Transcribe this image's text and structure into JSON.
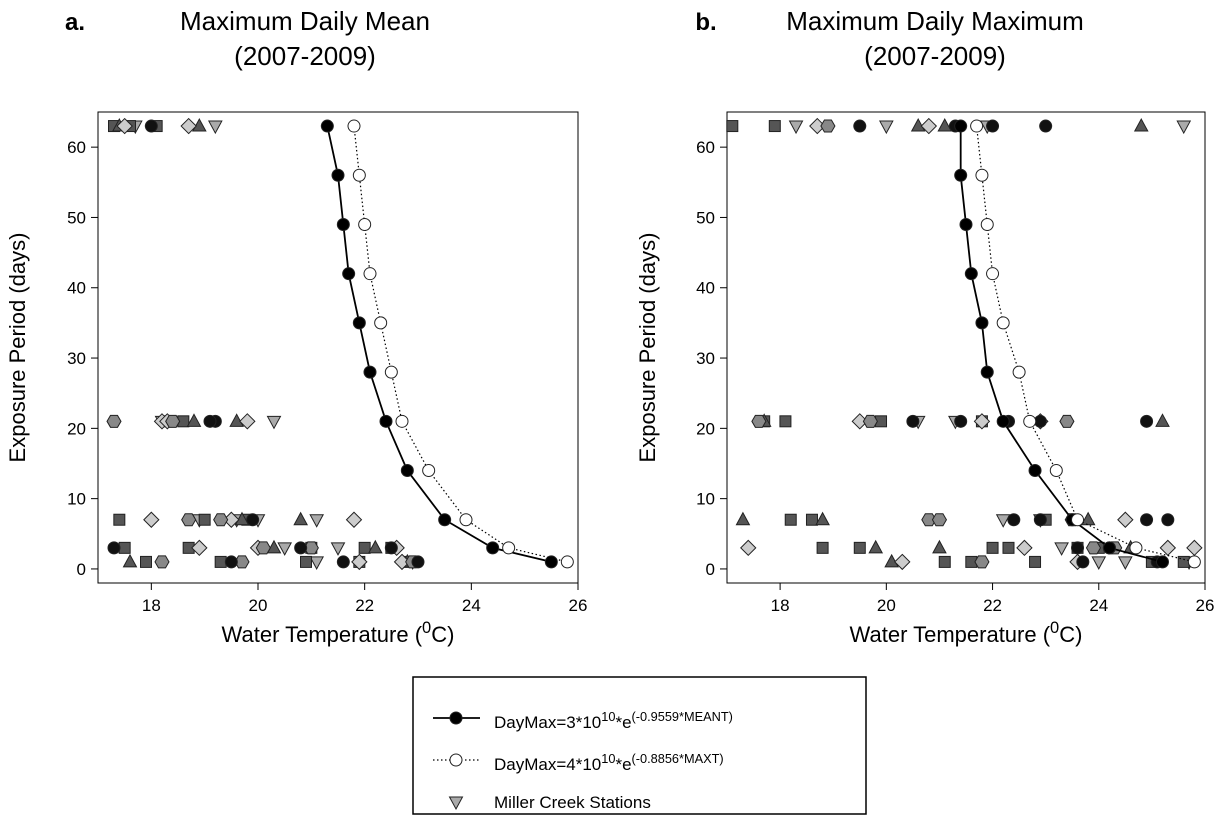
{
  "chart_data": [
    {
      "type": "scatter",
      "panel_label": "a.",
      "title": [
        "Maximum Daily Mean",
        "(2007-2009)"
      ],
      "x_label": [
        "Water Temperature (",
        "0",
        "C)"
      ],
      "y_label": "Exposure Period (days)",
      "xlim": [
        17,
        26
      ],
      "ylim": [
        -2,
        65
      ],
      "xticks": [
        18,
        20,
        22,
        24,
        26
      ],
      "yticks": [
        0,
        10,
        20,
        30,
        40,
        50,
        60
      ],
      "series": [
        {
          "name": [
            "DayMax=3*10",
            "10",
            "*e",
            "(-0.9559*MEANT)"
          ],
          "marker": "circle",
          "color": "#000000",
          "line": "solid",
          "x": [
            21.3,
            21.5,
            21.6,
            21.7,
            21.9,
            22.1,
            22.4,
            22.8,
            23.5,
            24.4,
            25.5
          ],
          "values": [
            63,
            56,
            49,
            42,
            35,
            28,
            21,
            14,
            7,
            3,
            1
          ]
        },
        {
          "name": [
            "DayMax=4*10",
            "10",
            "*e",
            "(-0.8856*MAXT)"
          ],
          "marker": "circle",
          "color": "#ffffff",
          "line": "dotted",
          "x": [
            21.8,
            21.9,
            22.0,
            22.1,
            22.3,
            22.5,
            22.7,
            23.2,
            23.9,
            24.7,
            25.8
          ],
          "values": [
            63,
            56,
            49,
            42,
            35,
            28,
            21,
            14,
            7,
            3,
            1
          ]
        },
        {
          "name": "Miller Creek Stations",
          "marker": "triangle-down",
          "color": "#aaaaaa",
          "x": [
            17.7,
            19.2,
            18.2,
            20.3,
            18.9,
            20.0,
            21.1,
            21.1,
            20.5,
            21.5,
            22.9,
            19.6
          ],
          "values": [
            63,
            63,
            21,
            21,
            7,
            7,
            7,
            1,
            3,
            3,
            1,
            7
          ]
        },
        {
          "marker": "square",
          "color": "#555555",
          "x": [
            17.3,
            17.6,
            18.1,
            17.4,
            17.5,
            17.9,
            18.7,
            19.3,
            18.3,
            18.6,
            20.9,
            21.0,
            21.9,
            22.0,
            22.5,
            22.8,
            19.0,
            19.8
          ],
          "values": [
            63,
            63,
            63,
            7,
            3,
            1,
            3,
            1,
            21,
            21,
            1,
            3,
            1,
            3,
            3,
            1,
            7,
            7
          ]
        },
        {
          "marker": "triangle-up",
          "color": "#555555",
          "x": [
            17.4,
            18.9,
            17.6,
            19.6,
            19.7,
            20.8,
            22.2,
            22.8,
            18.8,
            20.3
          ],
          "values": [
            63,
            63,
            1,
            21,
            7,
            7,
            3,
            1,
            21,
            3
          ]
        },
        {
          "marker": "diamond",
          "color": "#cccccc",
          "x": [
            17.5,
            18.7,
            18.0,
            18.2,
            18.9,
            19.5,
            19.8,
            20.0,
            21.8,
            21.9,
            22.6,
            22.7,
            18.3
          ],
          "values": [
            63,
            63,
            7,
            21,
            3,
            7,
            21,
            3,
            7,
            1,
            3,
            1,
            21
          ]
        },
        {
          "marker": "hexagon",
          "color": "#888888",
          "x": [
            17.3,
            18.7,
            18.4,
            18.2,
            19.3,
            19.7,
            20.1,
            21.0,
            22.9
          ],
          "values": [
            21,
            7,
            21,
            1,
            7,
            1,
            3,
            3,
            1
          ]
        },
        {
          "marker": "circle",
          "color": "#111111",
          "x": [
            18.0,
            17.3,
            19.2,
            19.5,
            19.9,
            20.8,
            21.6,
            22.5,
            23.0,
            19.1
          ],
          "values": [
            63,
            3,
            21,
            1,
            7,
            3,
            1,
            3,
            1,
            21
          ]
        }
      ]
    },
    {
      "type": "scatter",
      "panel_label": "b.",
      "title": [
        "Maximum Daily Maximum",
        "(2007-2009)"
      ],
      "x_label": [
        "Water Temperature (",
        "0",
        "C)"
      ],
      "y_label": "Exposure Period (days)",
      "xlim": [
        17,
        26
      ],
      "ylim": [
        -2,
        65
      ],
      "xticks": [
        18,
        20,
        22,
        24,
        26
      ],
      "yticks": [
        0,
        10,
        20,
        30,
        40,
        50,
        60
      ],
      "series": [
        {
          "marker": "circle",
          "color": "#000000",
          "line": "solid",
          "x": [
            21.4,
            21.4,
            21.5,
            21.6,
            21.8,
            21.9,
            22.2,
            22.8,
            23.5,
            24.2,
            25.2
          ],
          "values": [
            63,
            56,
            49,
            42,
            35,
            28,
            21,
            14,
            7,
            3,
            1
          ]
        },
        {
          "marker": "circle",
          "color": "#ffffff",
          "line": "dotted",
          "x": [
            21.7,
            21.8,
            21.9,
            22.0,
            22.2,
            22.5,
            22.7,
            23.2,
            23.6,
            24.7,
            25.8
          ],
          "values": [
            63,
            56,
            49,
            42,
            35,
            28,
            21,
            14,
            7,
            3,
            1
          ]
        },
        {
          "marker": "triangle-down",
          "color": "#aaaaaa",
          "x": [
            18.3,
            20.0,
            21.9,
            25.6,
            20.6,
            21.3,
            22.2,
            22.9,
            23.3,
            24.0,
            24.5,
            25.7
          ],
          "values": [
            63,
            63,
            63,
            63,
            21,
            21,
            7,
            7,
            3,
            1,
            1,
            1
          ]
        },
        {
          "marker": "square",
          "color": "#555555",
          "x": [
            17.1,
            17.9,
            17.7,
            18.1,
            18.2,
            18.6,
            18.8,
            19.5,
            19.9,
            21.1,
            21.6,
            21.8,
            22.0,
            22.3,
            22.8,
            23.0,
            23.6,
            24.0,
            25.0,
            25.6
          ],
          "values": [
            63,
            63,
            21,
            21,
            7,
            7,
            3,
            3,
            21,
            1,
            1,
            21,
            3,
            3,
            1,
            7,
            3,
            3,
            1,
            1
          ]
        },
        {
          "marker": "triangle-up",
          "color": "#555555",
          "x": [
            17.3,
            17.7,
            18.8,
            19.8,
            20.1,
            21.0,
            20.6,
            21.1,
            23.8,
            24.8,
            25.2,
            24.6
          ],
          "values": [
            7,
            21,
            7,
            3,
            1,
            3,
            63,
            63,
            7,
            63,
            21,
            3
          ]
        },
        {
          "marker": "diamond",
          "color": "#cccccc",
          "x": [
            17.4,
            18.7,
            19.5,
            20.3,
            20.8,
            21.8,
            22.6,
            23.6,
            24.5,
            25.3,
            25.8,
            22.9
          ],
          "values": [
            3,
            63,
            21,
            1,
            63,
            21,
            3,
            1,
            7,
            3,
            3,
            21
          ]
        },
        {
          "marker": "hexagon",
          "color": "#888888",
          "x": [
            17.6,
            18.9,
            19.7,
            20.8,
            21.0,
            21.8,
            23.4,
            23.5,
            24.3,
            23.9
          ],
          "values": [
            21,
            63,
            21,
            7,
            7,
            1,
            21,
            7,
            3,
            3
          ]
        },
        {
          "marker": "circle",
          "color": "#111111",
          "x": [
            19.5,
            21.3,
            22.0,
            23.0,
            20.5,
            21.4,
            22.3,
            22.9,
            24.9,
            22.4,
            22.9,
            24.9,
            25.3,
            23.6,
            24.2,
            23.7,
            25.1
          ],
          "values": [
            63,
            63,
            63,
            63,
            21,
            21,
            21,
            21,
            21,
            7,
            7,
            7,
            7,
            3,
            3,
            1,
            1
          ]
        }
      ]
    }
  ]
}
